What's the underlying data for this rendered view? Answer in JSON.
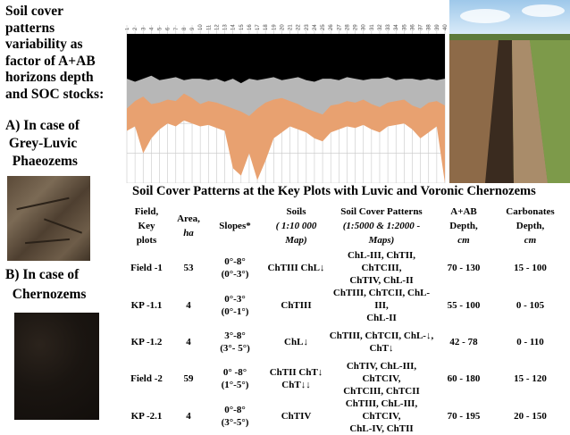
{
  "left_title": [
    "Soil cover",
    "patterns",
    "variability as",
    "factor of A+AB",
    "horizons depth",
    "and SOC stocks:"
  ],
  "case_a": [
    "A) In case of",
    " Grey-Luvic",
    "  Phaeozems"
  ],
  "case_b": [
    "B) In case of",
    "  Chernozems"
  ],
  "caption": "Soil Cover Patterns at the Key Plots with Luvic and Voronic Chernozems",
  "table": {
    "headers": {
      "field": [
        "Field,",
        "Key",
        "plots"
      ],
      "area": [
        "Area,",
        "ha"
      ],
      "slopes": "Slopes*",
      "soils": [
        "Soils",
        "( 1:10 000",
        "Map)"
      ],
      "scp": [
        "Soil Cover Patterns",
        "(1:5000 & 1:2000 -",
        "Maps)"
      ],
      "aab": [
        "A+AB",
        "Depth,",
        "cm"
      ],
      "carb": [
        "Carbonates",
        "Depth,",
        "cm"
      ]
    },
    "rows": [
      {
        "field": "Field -1",
        "area": "53",
        "slopes": [
          "0°-8°",
          "(0°-3°)"
        ],
        "soils": [
          "ChTIII ChL↓"
        ],
        "scp": [
          "ChL-III, ChTII, ChTCIII,",
          "ChTIV, ChL-II"
        ],
        "aab": "70 - 130",
        "carb": "15 - 100"
      },
      {
        "field": "KP -1.1",
        "area": "4",
        "slopes": [
          "0°-3°",
          "(0°-1°)"
        ],
        "soils": [
          "ChTIII"
        ],
        "scp": [
          "ChTIII, ChTCII, ChL-III,",
          "ChL-II"
        ],
        "aab": "55 - 100",
        "carb": "0 - 105"
      },
      {
        "field": "KP -1.2",
        "area": "4",
        "slopes": [
          "3°-8°",
          "(3°- 5°)"
        ],
        "soils": [
          "ChL↓"
        ],
        "scp": [
          "ChTIII, ChTCII, ChL-↓,",
          "ChT↓"
        ],
        "aab": "42 - 78",
        "carb": "0 - 110"
      },
      {
        "field": "Field -2",
        "area": "59",
        "slopes": [
          "0° -8°",
          "(1°-5°)"
        ],
        "soils": [
          "ChTII ChT↓",
          "ChT↓↓"
        ],
        "scp": [
          "ChTIV, ChL-III, ChTCIV,",
          "ChTCIII, ChTCII"
        ],
        "aab": "60 - 180",
        "carb": "15 - 120"
      },
      {
        "field": "KP -2.1",
        "area": "4",
        "slopes": [
          "0°-8°",
          "(3°-5°)"
        ],
        "soils": [
          "ChTIV"
        ],
        "scp": [
          "ChTIII, ChL-III, ChTCIV,",
          "ChL-IV, ChTII"
        ],
        "aab": "70 - 195",
        "carb": "20 - 150"
      }
    ]
  },
  "chart_data": {
    "type": "area",
    "categories": [
      "1",
      "2",
      "3",
      "4",
      "5",
      "6",
      "7",
      "8",
      "9",
      "10",
      "11",
      "12",
      "13",
      "14",
      "15",
      "16",
      "17",
      "18",
      "19",
      "20",
      "21",
      "22",
      "23",
      "24",
      "25",
      "26",
      "27",
      "28",
      "29",
      "30",
      "31",
      "32",
      "33",
      "34",
      "35",
      "36",
      "37",
      "38",
      "39",
      "40"
    ],
    "series": [
      {
        "values": [
          0.3,
          0.32,
          0.3,
          0.28,
          0.31,
          0.3,
          0.29,
          0.31,
          0.3,
          0.3,
          0.31,
          0.3,
          0.32,
          0.3,
          0.33,
          0.3,
          0.31,
          0.3,
          0.29,
          0.31,
          0.3,
          0.29,
          0.31,
          0.32,
          0.3,
          0.3,
          0.31,
          0.29,
          0.3,
          0.31,
          0.3,
          0.3,
          0.29,
          0.31,
          0.3,
          0.3,
          0.31,
          0.3,
          0.31,
          0.3
        ]
      },
      {
        "values": [
          0.5,
          0.45,
          0.42,
          0.47,
          0.46,
          0.44,
          0.45,
          0.4,
          0.43,
          0.47,
          0.45,
          0.46,
          0.48,
          0.5,
          0.52,
          0.55,
          0.5,
          0.46,
          0.44,
          0.43,
          0.45,
          0.47,
          0.5,
          0.52,
          0.54,
          0.48,
          0.47,
          0.45,
          0.46,
          0.44,
          0.47,
          0.49,
          0.46,
          0.45,
          0.44,
          0.48,
          0.5,
          0.46,
          0.45,
          0.48
        ]
      },
      {
        "values": [
          0.65,
          0.62,
          0.8,
          0.7,
          0.64,
          0.6,
          0.62,
          0.58,
          0.6,
          0.62,
          0.61,
          0.63,
          0.65,
          0.9,
          0.95,
          0.8,
          0.98,
          0.85,
          0.7,
          0.66,
          0.62,
          0.64,
          0.66,
          0.7,
          0.72,
          0.66,
          0.64,
          0.62,
          0.63,
          0.61,
          0.64,
          0.66,
          0.62,
          0.61,
          0.6,
          0.64,
          0.7,
          0.66,
          0.62,
          1.0
        ]
      }
    ]
  },
  "colors": {
    "black": "#000000",
    "grey": "#b7b7b7",
    "orange": "#e8a170",
    "grid": "#c8c8c8"
  }
}
